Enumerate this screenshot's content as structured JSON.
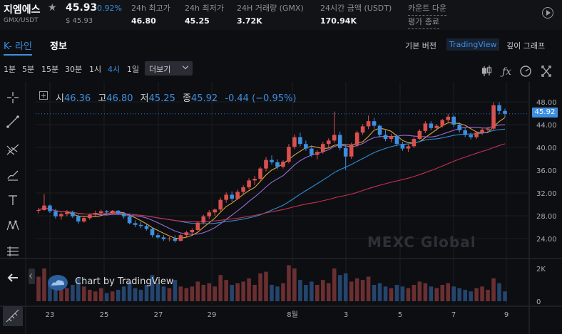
{
  "header": {
    "symbol": "지엠에스",
    "pair": "GMX/USDT",
    "price": "45.93",
    "change": "-0.92%",
    "usd_price": "$ 45.93",
    "stats": [
      {
        "label": "24h 최고가",
        "value": "46.80"
      },
      {
        "label": "24h 최저가",
        "value": "45.25"
      },
      {
        "label": "24H 거래량 (GMX)",
        "value": "3.72K"
      },
      {
        "label": "24시간 금액 (USDT)",
        "value": "170.94K"
      }
    ],
    "countdown": [
      "카운트 다운",
      "평가 종료"
    ]
  },
  "tabs": {
    "kline": "K- 라인",
    "info": "정보"
  },
  "views": {
    "basic": "기본 버전",
    "tradingview": "TradingView",
    "depth": "깊이 그래프"
  },
  "intervals": [
    "1분",
    "5분",
    "15분",
    "30분",
    "1시",
    "4시",
    "1일"
  ],
  "active_interval": "4시",
  "more_label": "더보기",
  "toolbar_icons": [
    "candle-type-icon",
    "indicators-icon",
    "settings-icon",
    "fullscreen-icon"
  ],
  "ohlc": {
    "open_label": "시",
    "open": "46.36",
    "high_label": "고",
    "high": "46.80",
    "low_label": "저",
    "low": "45.25",
    "close_label": "종",
    "close": "45.92",
    "change": "-0.44 (−0.95%)"
  },
  "watermark": "MEXC Global",
  "tv_badge": "Chart by TradingView",
  "last_price_tag": "45.92",
  "colors": {
    "up": "#d9514e",
    "down": "#3d8fe0",
    "ma_short": "#e0a43a",
    "ma_mid": "#9b6bd6",
    "ma_long": "#2d8ed8",
    "ma_longest": "#c7304e"
  },
  "chart_data": {
    "type": "candlestick",
    "price_axis": [
      "48.00",
      "44.00",
      "40.00",
      "36.00",
      "32.00",
      "28.00",
      "24.00"
    ],
    "volume_axis": [
      "2K",
      "0"
    ],
    "x_labels": [
      "23",
      "25",
      "27",
      "29",
      "8월",
      "3",
      "5",
      "7",
      "9"
    ],
    "candles": [
      [
        29.0,
        29.4,
        28.4,
        29.0
      ],
      [
        29.0,
        31.8,
        28.9,
        29.8
      ],
      [
        29.8,
        30.0,
        28.5,
        28.8
      ],
      [
        28.8,
        29.2,
        27.5,
        27.9
      ],
      [
        27.9,
        28.6,
        27.3,
        28.3
      ],
      [
        28.3,
        29.0,
        27.9,
        28.6
      ],
      [
        28.6,
        28.9,
        27.6,
        27.9
      ],
      [
        27.9,
        28.2,
        26.6,
        27.0
      ],
      [
        27.0,
        28.0,
        26.8,
        27.6
      ],
      [
        27.6,
        28.4,
        27.3,
        28.2
      ],
      [
        28.2,
        28.9,
        27.9,
        28.5
      ],
      [
        28.5,
        29.1,
        28.2,
        28.8
      ],
      [
        28.8,
        29.0,
        28.4,
        28.6
      ],
      [
        28.6,
        29.0,
        28.3,
        28.9
      ],
      [
        28.9,
        29.0,
        28.2,
        28.4
      ],
      [
        28.4,
        28.7,
        27.5,
        27.9
      ],
      [
        27.9,
        28.4,
        26.5,
        26.7
      ],
      [
        26.7,
        27.2,
        26.0,
        26.4
      ],
      [
        26.4,
        26.9,
        25.8,
        26.2
      ],
      [
        26.2,
        26.6,
        25.4,
        25.7
      ],
      [
        25.7,
        26.0,
        24.2,
        24.6
      ],
      [
        24.6,
        25.0,
        23.9,
        24.2
      ],
      [
        24.2,
        24.6,
        23.6,
        23.9
      ],
      [
        23.9,
        24.3,
        23.5,
        24.0
      ],
      [
        24.0,
        24.6,
        23.3,
        23.6
      ],
      [
        23.6,
        24.8,
        23.5,
        24.6
      ],
      [
        24.6,
        25.4,
        24.3,
        25.1
      ],
      [
        25.1,
        25.8,
        24.8,
        25.5
      ],
      [
        25.5,
        27.0,
        25.3,
        26.8
      ],
      [
        26.8,
        28.2,
        26.5,
        27.9
      ],
      [
        27.9,
        29.0,
        27.4,
        28.6
      ],
      [
        28.6,
        29.3,
        28.0,
        29.1
      ],
      [
        29.1,
        31.2,
        28.8,
        30.8
      ],
      [
        30.8,
        32.1,
        30.3,
        31.7
      ],
      [
        31.7,
        32.3,
        30.5,
        31.0
      ],
      [
        31.0,
        32.6,
        30.8,
        32.2
      ],
      [
        32.2,
        33.4,
        31.8,
        33.0
      ],
      [
        33.0,
        34.6,
        32.7,
        34.2
      ],
      [
        34.2,
        35.0,
        33.4,
        34.5
      ],
      [
        34.5,
        36.6,
        34.2,
        36.3
      ],
      [
        36.3,
        38.3,
        35.8,
        37.8
      ],
      [
        37.8,
        38.6,
        37.0,
        37.4
      ],
      [
        37.4,
        37.9,
        36.2,
        36.6
      ],
      [
        36.6,
        37.8,
        36.3,
        37.5
      ],
      [
        37.5,
        40.6,
        37.2,
        40.1
      ],
      [
        40.1,
        42.3,
        39.7,
        41.8
      ],
      [
        41.8,
        42.6,
        40.2,
        40.6
      ],
      [
        40.6,
        41.2,
        39.4,
        39.8
      ],
      [
        39.8,
        40.4,
        38.3,
        38.7
      ],
      [
        38.7,
        39.5,
        37.9,
        39.2
      ],
      [
        39.2,
        41.0,
        38.9,
        40.6
      ],
      [
        40.6,
        41.6,
        40.0,
        41.2
      ],
      [
        41.2,
        46.3,
        40.8,
        42.2
      ],
      [
        42.2,
        42.8,
        39.5,
        39.9
      ],
      [
        39.9,
        40.6,
        36.0,
        38.4
      ],
      [
        38.4,
        40.8,
        38.0,
        40.4
      ],
      [
        40.4,
        42.9,
        40.1,
        42.6
      ],
      [
        42.6,
        44.1,
        42.2,
        43.7
      ],
      [
        43.7,
        45.6,
        43.2,
        44.6
      ],
      [
        44.6,
        45.2,
        43.3,
        43.8
      ],
      [
        43.8,
        44.0,
        41.8,
        42.2
      ],
      [
        42.2,
        43.0,
        41.1,
        41.5
      ],
      [
        41.5,
        42.4,
        40.9,
        42.0
      ],
      [
        42.0,
        42.3,
        40.2,
        40.6
      ],
      [
        40.6,
        41.0,
        39.4,
        39.8
      ],
      [
        39.8,
        40.5,
        39.2,
        40.2
      ],
      [
        40.2,
        41.8,
        39.9,
        41.5
      ],
      [
        41.5,
        43.2,
        41.3,
        42.9
      ],
      [
        42.9,
        44.6,
        42.5,
        44.2
      ],
      [
        44.2,
        44.6,
        43.0,
        43.4
      ],
      [
        43.4,
        44.1,
        42.9,
        43.8
      ],
      [
        43.8,
        45.0,
        43.5,
        44.8
      ],
      [
        44.8,
        45.9,
        44.4,
        45.4
      ],
      [
        45.4,
        45.7,
        43.6,
        44.0
      ],
      [
        44.0,
        44.4,
        42.6,
        43.0
      ],
      [
        43.0,
        43.4,
        41.8,
        42.2
      ],
      [
        42.2,
        42.6,
        41.4,
        41.8
      ],
      [
        41.8,
        42.8,
        41.5,
        42.6
      ],
      [
        42.6,
        43.4,
        42.2,
        43.1
      ],
      [
        43.1,
        43.6,
        42.6,
        43.3
      ],
      [
        43.3,
        47.9,
        43.1,
        47.4
      ],
      [
        47.4,
        47.9,
        45.8,
        46.4
      ],
      [
        46.4,
        46.8,
        45.3,
        45.9
      ]
    ],
    "volume": [
      1.5,
      2.0,
      1.1,
      0.9,
      1.3,
      0.8,
      1.0,
      1.4,
      0.9,
      0.7,
      0.6,
      0.8,
      0.5,
      0.6,
      0.7,
      0.9,
      1.2,
      0.8,
      0.7,
      1.0,
      1.6,
      1.1,
      0.9,
      0.8,
      1.3,
      0.9,
      0.8,
      0.9,
      1.2,
      1.0,
      1.1,
      0.9,
      1.6,
      1.3,
      1.0,
      1.1,
      1.2,
      1.4,
      1.0,
      1.7,
      1.8,
      1.0,
      0.9,
      1.1,
      2.2,
      2.0,
      1.3,
      1.0,
      1.2,
      1.0,
      1.3,
      1.1,
      2.0,
      1.6,
      1.7,
      1.2,
      1.4,
      1.3,
      1.5,
      1.0,
      1.1,
      0.9,
      0.8,
      1.0,
      0.9,
      0.8,
      1.0,
      1.2,
      1.1,
      0.9,
      0.8,
      1.0,
      1.1,
      0.9,
      0.8,
      0.7,
      0.6,
      0.8,
      0.9,
      0.7,
      1.4,
      1.1,
      0.6
    ]
  }
}
